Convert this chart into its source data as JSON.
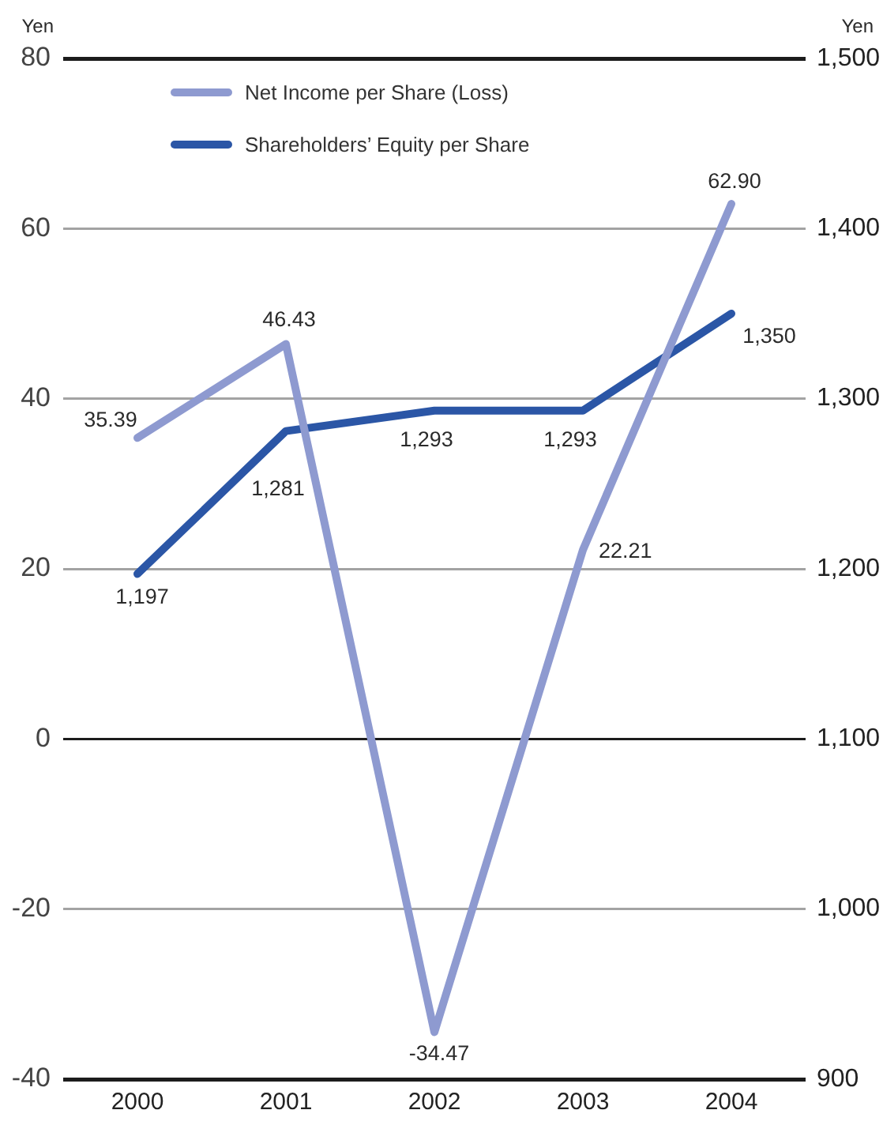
{
  "chart_data": {
    "type": "line",
    "categories": [
      "2000",
      "2001",
      "2002",
      "2003",
      "2004"
    ],
    "ylabel": "Yen",
    "y2label": "Yen",
    "series": [
      {
        "name": "Net Income per Share (Loss)",
        "color": "#8e9ad0",
        "values": [
          35.39,
          46.43,
          -34.47,
          22.21,
          62.9
        ],
        "value_labels": [
          "35.39",
          "46.43",
          "-34.47",
          "22.21",
          "62.90"
        ]
      },
      {
        "name": "Shareholders’ Equity per Share",
        "color": "#2b56a6",
        "axis": "y2",
        "values": [
          1197,
          1281,
          1293,
          1293,
          1350
        ],
        "value_labels": [
          "1,197",
          "1,281",
          "1,293",
          "1,293",
          "1,350"
        ]
      }
    ],
    "ylim": [
      -40,
      80
    ],
    "yticks": [
      -40,
      -20,
      0,
      20,
      40,
      60,
      80
    ],
    "y2lim": [
      900,
      1500
    ],
    "y2ticks": [
      900,
      {
        "value": 1000,
        "label": "1,000"
      },
      {
        "value": 1100,
        "label": "1,100"
      },
      {
        "value": 1200,
        "label": "1,200"
      },
      {
        "value": 1300,
        "label": "1,300"
      },
      {
        "value": 1400,
        "label": "1,400"
      },
      {
        "value": 1500,
        "label": "1,500"
      }
    ],
    "grid": "y",
    "legend": "top left",
    "marker": "none",
    "line_style": "solid"
  }
}
